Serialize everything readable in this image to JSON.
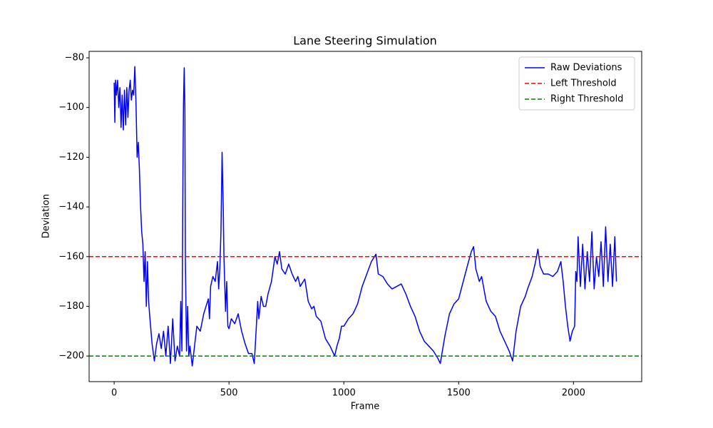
{
  "chart_data": {
    "type": "line",
    "title": "Lane Steering Simulation",
    "x_label": "Frame",
    "y_label": "Deviation",
    "xlim": [
      -109,
      2297
    ],
    "ylim": [
      -210.3,
      -77.4
    ],
    "xticks": [
      0,
      500,
      1000,
      1500,
      2000
    ],
    "yticks": [
      {
        "value": -200,
        "label": "−200"
      },
      {
        "value": -180,
        "label": "−180"
      },
      {
        "value": -160,
        "label": "−160"
      },
      {
        "value": -140,
        "label": "−140"
      },
      {
        "value": -120,
        "label": "−120"
      },
      {
        "value": -100,
        "label": "−100"
      },
      {
        "value": -80,
        "label": "−80"
      }
    ],
    "legend": "upper right",
    "series": [
      {
        "name": "Raw Deviations",
        "color": "#0000ff",
        "x": [
          0,
          3,
          6,
          10,
          15,
          20,
          25,
          30,
          35,
          40,
          45,
          50,
          55,
          60,
          65,
          70,
          75,
          80,
          85,
          90,
          95,
          100,
          105,
          110,
          115,
          120,
          125,
          130,
          135,
          140,
          145,
          150,
          155,
          165,
          175,
          185,
          195,
          205,
          215,
          225,
          235,
          245,
          255,
          265,
          275,
          285,
          290,
          295,
          300,
          302,
          305,
          308,
          310,
          315,
          320,
          325,
          330,
          340,
          350,
          360,
          375,
          390,
          400,
          410,
          415,
          420,
          430,
          440,
          450,
          455,
          460,
          465,
          470,
          475,
          478,
          485,
          490,
          495,
          500,
          510,
          525,
          540,
          555,
          570,
          585,
          600,
          610,
          615,
          625,
          630,
          640,
          650,
          660,
          670,
          685,
          700,
          710,
          720,
          730,
          745,
          760,
          775,
          790,
          800,
          810,
          830,
          845,
          860,
          870,
          880,
          900,
          920,
          940,
          960,
          970,
          980,
          990,
          1000,
          1020,
          1040,
          1060,
          1080,
          1100,
          1120,
          1140,
          1150,
          1170,
          1190,
          1210,
          1230,
          1250,
          1270,
          1290,
          1310,
          1330,
          1350,
          1370,
          1390,
          1410,
          1420,
          1440,
          1460,
          1480,
          1500,
          1520,
          1540,
          1555,
          1565,
          1575,
          1590,
          1600,
          1620,
          1640,
          1660,
          1680,
          1700,
          1720,
          1735,
          1750,
          1770,
          1790,
          1800,
          1820,
          1835,
          1845,
          1855,
          1870,
          1890,
          1910,
          1930,
          1945,
          1955,
          1965,
          1975,
          1985,
          1995,
          2005,
          2010,
          2015,
          2020,
          2030,
          2040,
          2050,
          2060,
          2070,
          2080,
          2090,
          2100,
          2110,
          2120,
          2130,
          2140,
          2150,
          2160,
          2170,
          2180,
          2187
        ],
        "values": [
          -90,
          -106,
          -89,
          -95,
          -89,
          -100,
          -92,
          -108,
          -95,
          -109,
          -93,
          -107,
          -92,
          -104,
          -93,
          -89,
          -97,
          -93,
          -95,
          -83.5,
          -98,
          -120,
          -114,
          -125,
          -140,
          -150,
          -155,
          -170,
          -158,
          -180,
          -162,
          -178,
          -184,
          -195,
          -202,
          -195,
          -191,
          -197,
          -190,
          -200,
          -188,
          -203,
          -185,
          -202,
          -196,
          -200,
          -178,
          -198,
          -120,
          -98,
          -84,
          -100,
          -160,
          -198,
          -180,
          -200,
          -196,
          -204,
          -196,
          -188,
          -190,
          -183,
          -180,
          -177,
          -185,
          -172,
          -168,
          -170,
          -162,
          -173,
          -165,
          -150,
          -118,
          -140,
          -160,
          -182,
          -170,
          -188,
          -189,
          -185,
          -187,
          -183,
          -190,
          -195,
          -199,
          -199,
          -203,
          -195,
          -178,
          -185,
          -176,
          -180,
          -180,
          -175,
          -170,
          -160,
          -163,
          -158,
          -165,
          -167,
          -163,
          -167,
          -170,
          -168,
          -172,
          -169,
          -178,
          -181,
          -180,
          -184,
          -186,
          -193,
          -196,
          -200,
          -196,
          -193,
          -188,
          -188,
          -185,
          -183,
          -179,
          -172,
          -167,
          -162,
          -159,
          -167,
          -168,
          -171,
          -173,
          -172,
          -171,
          -175,
          -180,
          -184,
          -190,
          -194,
          -196,
          -198,
          -201,
          -203,
          -192,
          -183,
          -179,
          -177,
          -170,
          -163,
          -158,
          -156,
          -165,
          -170,
          -168,
          -178,
          -182,
          -184,
          -190,
          -194,
          -198,
          -202,
          -190,
          -180,
          -176,
          -173,
          -168,
          -162,
          -157,
          -164,
          -167,
          -167,
          -168,
          -166,
          -162,
          -170,
          -180,
          -188,
          -194,
          -190,
          -188,
          -166,
          -170,
          -152,
          -172,
          -155,
          -173,
          -158,
          -170,
          -150,
          -173,
          -160,
          -168,
          -154,
          -172,
          -148,
          -170,
          -155,
          -172,
          -152,
          -170
        ]
      }
    ],
    "thresholds": [
      {
        "name": "Left Threshold",
        "color": "#ff0000",
        "value": -160
      },
      {
        "name": "Right Threshold",
        "color": "#008000",
        "value": -200
      }
    ]
  }
}
